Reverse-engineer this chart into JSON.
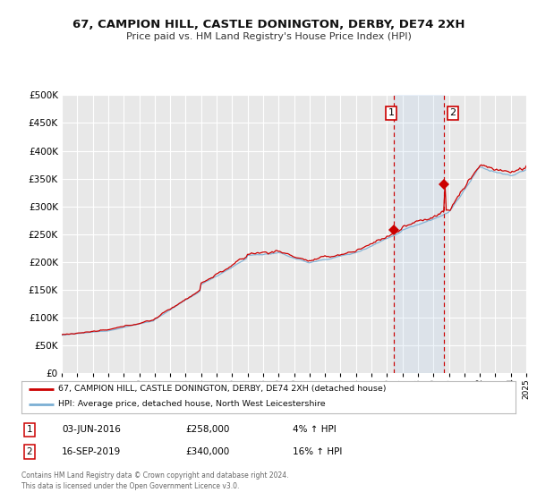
{
  "title": "67, CAMPION HILL, CASTLE DONINGTON, DERBY, DE74 2XH",
  "subtitle": "Price paid vs. HM Land Registry's House Price Index (HPI)",
  "legend_line1": "67, CAMPION HILL, CASTLE DONINGTON, DERBY, DE74 2XH (detached house)",
  "legend_line2": "HPI: Average price, detached house, North West Leicestershire",
  "annotation1_date": "03-JUN-2016",
  "annotation1_price": "£258,000",
  "annotation1_hpi": "4% ↑ HPI",
  "annotation1_year": 2016.42,
  "annotation1_value": 258000,
  "annotation2_date": "16-SEP-2019",
  "annotation2_price": "£340,000",
  "annotation2_hpi": "16% ↑ HPI",
  "annotation2_year": 2019.71,
  "annotation2_value": 340000,
  "sale_color": "#cc0000",
  "hpi_color": "#7bafd4",
  "background_color": "#ffffff",
  "plot_background": "#e8e8e8",
  "grid_color": "#ffffff",
  "ylabel_values": [
    0,
    50000,
    100000,
    150000,
    200000,
    250000,
    300000,
    350000,
    400000,
    450000,
    500000
  ],
  "xmin": 1995,
  "xmax": 2025,
  "ymin": 0,
  "ymax": 500000,
  "footnote": "Contains HM Land Registry data © Crown copyright and database right 2024.\nThis data is licensed under the Open Government Licence v3.0."
}
